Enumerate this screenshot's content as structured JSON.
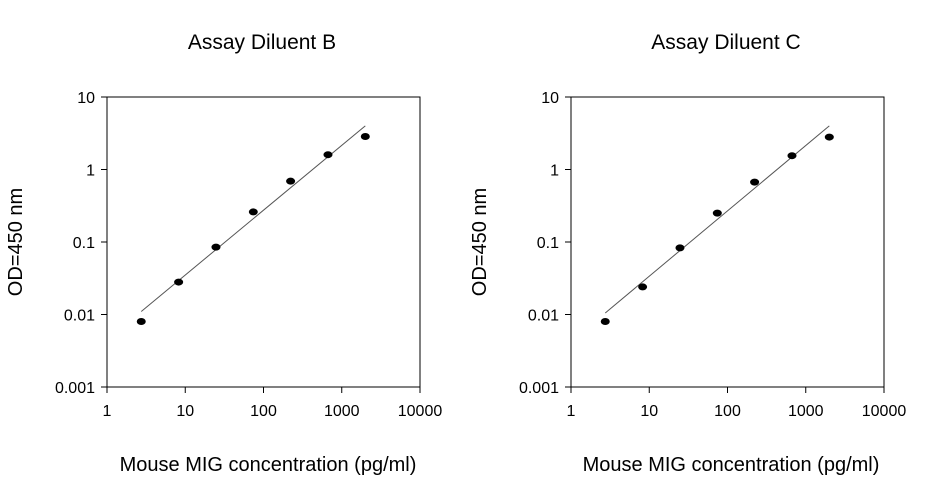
{
  "chart_data": [
    {
      "type": "scatter",
      "title": "Assay Diluent B",
      "xlabel": "Mouse MIG concentration (pg/ml)",
      "ylabel": "OD=450 nm",
      "xscale": "log",
      "yscale": "log",
      "xlim": [
        1,
        10000
      ],
      "ylim": [
        0.001,
        10
      ],
      "xticks": [
        "1",
        "10",
        "100",
        "1000",
        "10000"
      ],
      "yticks": [
        "0.001",
        "0.01",
        "0.1",
        "1",
        "10"
      ],
      "grid": false,
      "points": [
        {
          "x": 2.74,
          "y": 0.008
        },
        {
          "x": 8.23,
          "y": 0.028
        },
        {
          "x": 24.7,
          "y": 0.085
        },
        {
          "x": 74.1,
          "y": 0.26
        },
        {
          "x": 222,
          "y": 0.69
        },
        {
          "x": 667,
          "y": 1.6
        },
        {
          "x": 2000,
          "y": 2.85
        }
      ],
      "fit_line": [
        {
          "x": 2.74,
          "y": 0.011
        },
        {
          "x": 2000,
          "y": 4.0
        }
      ]
    },
    {
      "type": "scatter",
      "title": "Assay Diluent C",
      "xlabel": "Mouse MIG concentration (pg/ml)",
      "ylabel": "OD=450 nm",
      "xscale": "log",
      "yscale": "log",
      "xlim": [
        1,
        10000
      ],
      "ylim": [
        0.001,
        10
      ],
      "xticks": [
        "1",
        "10",
        "100",
        "1000",
        "10000"
      ],
      "yticks": [
        "0.001",
        "0.01",
        "0.1",
        "1",
        "10"
      ],
      "grid": false,
      "points": [
        {
          "x": 2.74,
          "y": 0.008
        },
        {
          "x": 8.23,
          "y": 0.024
        },
        {
          "x": 24.7,
          "y": 0.083
        },
        {
          "x": 74.1,
          "y": 0.25
        },
        {
          "x": 222,
          "y": 0.67
        },
        {
          "x": 667,
          "y": 1.55
        },
        {
          "x": 2000,
          "y": 2.8
        }
      ],
      "fit_line": [
        {
          "x": 2.74,
          "y": 0.0105
        },
        {
          "x": 2000,
          "y": 4.0
        }
      ]
    }
  ]
}
